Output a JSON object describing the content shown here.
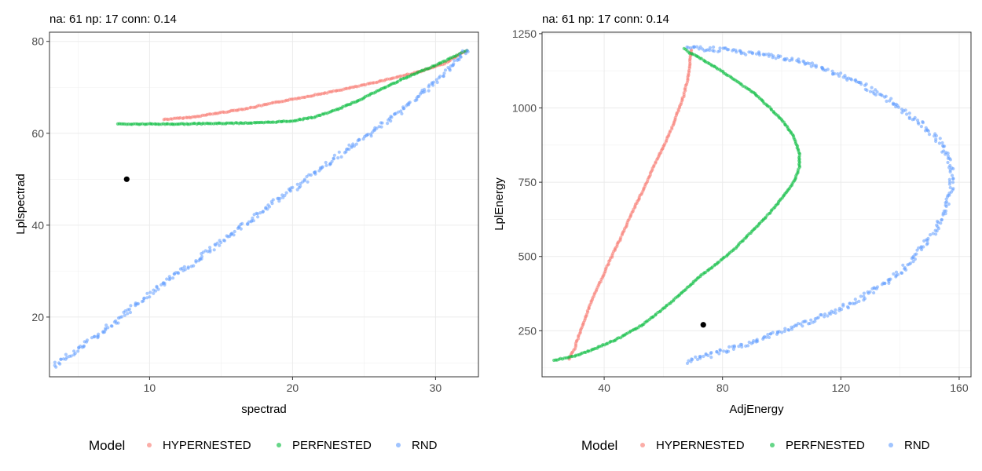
{
  "legend": {
    "title": "Model",
    "entries": [
      {
        "label": "HYPERNESTED",
        "color": "#F8766D"
      },
      {
        "label": "PERFNESTED",
        "color": "#00BA38"
      },
      {
        "label": "RND",
        "color": "#619CFF"
      }
    ]
  },
  "chart_data": [
    {
      "type": "scatter",
      "title": "na: 61 np: 17 conn: 0.14",
      "xlabel": "spectrad",
      "ylabel": "Lplspectrad",
      "xlim": [
        3,
        33
      ],
      "ylim": [
        7,
        82
      ],
      "xticks": [
        10,
        20,
        30
      ],
      "yticks": [
        20,
        40,
        60,
        80
      ],
      "grid": true,
      "legend": "bottom",
      "reference_point": {
        "x": 8.4,
        "y": 50.0,
        "color": "#000000"
      },
      "series": [
        {
          "name": "HYPERNESTED",
          "color": "#F8766D",
          "x": [
            11.0,
            13.0,
            15.0,
            17.0,
            19.0,
            21.0,
            23.0,
            25.0,
            27.0,
            29.0,
            30.5,
            31.5,
            32.2
          ],
          "y": [
            63.0,
            63.5,
            64.5,
            65.5,
            66.8,
            68.0,
            69.2,
            70.5,
            72.0,
            73.5,
            75.0,
            76.8,
            78.0
          ]
        },
        {
          "name": "PERFNESTED",
          "color": "#00BA38",
          "x": [
            7.8,
            10.0,
            12.0,
            14.0,
            16.0,
            18.0,
            20.0,
            21.5,
            23.0,
            24.5,
            26.0,
            27.5,
            29.0,
            30.5,
            31.5,
            32.2
          ],
          "y": [
            62.0,
            62.0,
            62.0,
            62.1,
            62.2,
            62.3,
            62.7,
            63.5,
            65.0,
            67.0,
            69.3,
            71.5,
            73.5,
            75.5,
            77.0,
            78.0
          ]
        },
        {
          "name": "RND",
          "color": "#619CFF",
          "x": [
            3.3,
            5.0,
            7.0,
            9.0,
            11.0,
            13.0,
            15.0,
            17.0,
            19.0,
            21.0,
            23.0,
            25.0,
            27.0,
            29.0,
            31.0,
            32.2
          ],
          "y": [
            9.5,
            13.0,
            17.5,
            22.5,
            27.5,
            31.5,
            36.5,
            41.0,
            45.5,
            50.0,
            54.5,
            59.0,
            63.5,
            68.5,
            74.0,
            78.0
          ]
        }
      ]
    },
    {
      "type": "scatter",
      "title": "na: 61 np: 17 conn: 0.14",
      "xlabel": "AdjEnergy",
      "ylabel": "LplEnergy",
      "xlim": [
        19,
        164
      ],
      "ylim": [
        95,
        1255
      ],
      "xticks": [
        40,
        80,
        120,
        160
      ],
      "yticks": [
        250,
        500,
        750,
        1000,
        1250
      ],
      "grid": true,
      "legend": "bottom",
      "reference_point": {
        "x": 73.5,
        "y": 270,
        "color": "#000000"
      },
      "series": [
        {
          "name": "HYPERNESTED",
          "color": "#F8766D",
          "x": [
            28.0,
            30.0,
            31.5,
            33.5,
            35.5,
            38.0,
            40.5,
            43.0,
            45.5,
            48.0,
            50.5,
            53.0,
            55.5,
            58.0,
            60.5,
            63.0,
            65.0,
            67.0,
            68.5,
            69.5
          ],
          "y": [
            155,
            190,
            235,
            290,
            345,
            400,
            455,
            510,
            560,
            615,
            670,
            720,
            775,
            830,
            880,
            935,
            990,
            1045,
            1110,
            1195
          ]
        },
        {
          "name": "PERFNESTED",
          "color": "#00BA38",
          "x": [
            23.0,
            30.0,
            37.0,
            45.0,
            53.0,
            60.0,
            66.0,
            72.0,
            78.0,
            84.0,
            89.0,
            94.0,
            98.0,
            102.0,
            104.5,
            106.0,
            106.0,
            104.0,
            100.0,
            95.0,
            90.0,
            84.0,
            78.0,
            73.0,
            69.0,
            67.0
          ],
          "y": [
            150,
            165,
            190,
            225,
            270,
            325,
            375,
            430,
            475,
            525,
            575,
            625,
            670,
            720,
            760,
            800,
            850,
            905,
            960,
            1010,
            1055,
            1095,
            1135,
            1165,
            1185,
            1200
          ]
        },
        {
          "name": "RND",
          "color": "#619CFF",
          "x": [
            68.0,
            78.0,
            88.0,
            98.0,
            108.0,
            117.0,
            125.0,
            132.0,
            138.0,
            143.0,
            147.0,
            151.0,
            154.0,
            156.0,
            157.5,
            157.5,
            156.0,
            153.0,
            148.0,
            142.0,
            136.0,
            128.0,
            120.0,
            110.0,
            100.0,
            90.0,
            80.0,
            72.0,
            68.0
          ],
          "y": [
            145,
            175,
            205,
            240,
            275,
            310,
            350,
            390,
            430,
            475,
            525,
            575,
            625,
            680,
            730,
            780,
            835,
            890,
            940,
            985,
            1030,
            1075,
            1110,
            1145,
            1170,
            1185,
            1195,
            1200,
            1205
          ]
        }
      ]
    }
  ]
}
